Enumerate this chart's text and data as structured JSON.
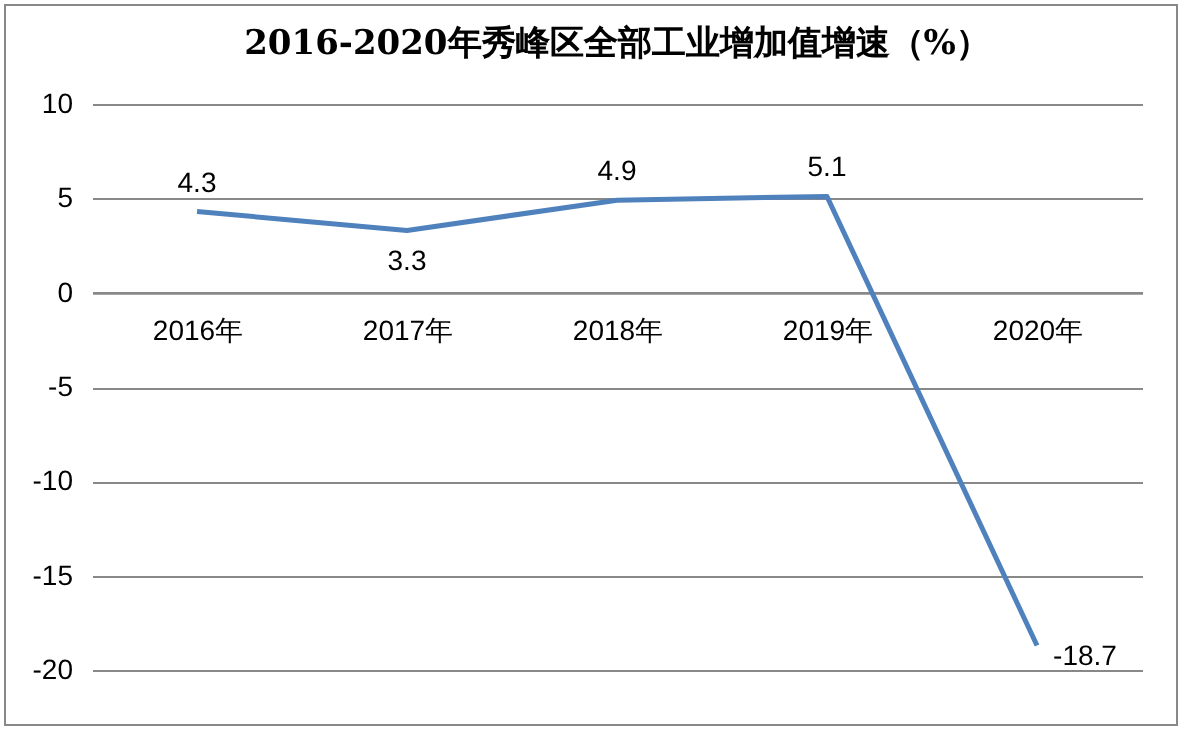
{
  "chart_data": {
    "type": "line",
    "title": "2016-2020年秀峰区全部工业增加值增速（%）",
    "categories": [
      "2016年",
      "2017年",
      "2018年",
      "2019年",
      "2020年"
    ],
    "series": [
      {
        "color": "#4f81bd",
        "values": [
          4.3,
          3.3,
          4.9,
          5.1,
          -18.7
        ]
      }
    ],
    "ylim": [
      -20,
      10
    ],
    "yticks": [
      -20,
      -15,
      -10,
      -5,
      0,
      5,
      10
    ],
    "grid": "y",
    "data_labels": true,
    "legend": false,
    "marker": "none"
  }
}
